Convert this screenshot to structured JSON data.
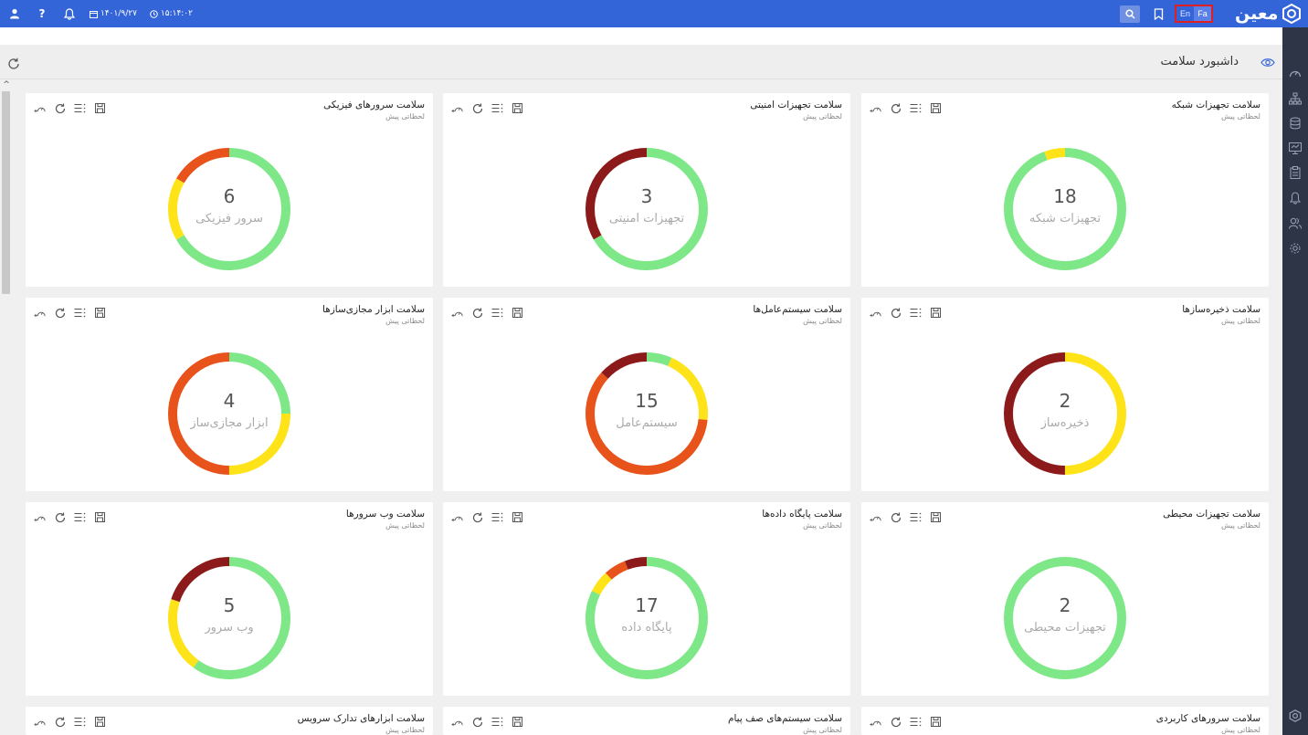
{
  "topbar": {
    "date": "۱۴۰۱/۹/۲۷",
    "time": "۱۵:۱۴:۰۲",
    "lang_en": "En",
    "lang_fa": "Fa",
    "logo_text": "معین",
    "colors": {
      "bar": "#3465d8",
      "lang_highlight": "#e02020"
    }
  },
  "page": {
    "title": "داشبورد سلامت"
  },
  "colors": {
    "green": "#7ee787",
    "yellow": "#fde318",
    "orange": "#e8521b",
    "darkred": "#8c1a1a"
  },
  "cards": [
    {
      "title": "سلامت تجهیزات شبکه",
      "subtitle": "لحظاتی پیش",
      "count": "18",
      "label": "تجهیزات شبکه",
      "segments": [
        {
          "color": "green",
          "value": 17
        },
        {
          "color": "yellow",
          "value": 1
        }
      ]
    },
    {
      "title": "سلامت تجهیزات امنیتی",
      "subtitle": "لحظاتی پیش",
      "count": "3",
      "label": "تجهیزات امنیتی",
      "segments": [
        {
          "color": "green",
          "value": 2
        },
        {
          "color": "darkred",
          "value": 1
        }
      ]
    },
    {
      "title": "سلامت سرورهای فیزیکی",
      "subtitle": "لحظاتی پیش",
      "count": "6",
      "label": "سرور فیزیکی",
      "segments": [
        {
          "color": "green",
          "value": 4
        },
        {
          "color": "yellow",
          "value": 1
        },
        {
          "color": "orange",
          "value": 1
        }
      ]
    },
    {
      "title": "سلامت ذخیره‌سازها",
      "subtitle": "لحظاتی پیش",
      "count": "2",
      "label": "ذخیره‌ساز",
      "segments": [
        {
          "color": "yellow",
          "value": 1
        },
        {
          "color": "darkred",
          "value": 1
        }
      ]
    },
    {
      "title": "سلامت سیستم‌عامل‌ها",
      "subtitle": "لحظاتی پیش",
      "count": "15",
      "label": "سیستم‌عامل",
      "segments": [
        {
          "color": "green",
          "value": 1
        },
        {
          "color": "yellow",
          "value": 3
        },
        {
          "color": "orange",
          "value": 9
        },
        {
          "color": "darkred",
          "value": 2
        }
      ]
    },
    {
      "title": "سلامت ابزار مجازی‌سازها",
      "subtitle": "لحظاتی پیش",
      "count": "4",
      "label": "ابزار مجازی‌ساز",
      "segments": [
        {
          "color": "green",
          "value": 1
        },
        {
          "color": "yellow",
          "value": 1
        },
        {
          "color": "orange",
          "value": 2
        }
      ]
    },
    {
      "title": "سلامت تجهیزات محیطی",
      "subtitle": "لحظاتی پیش",
      "count": "2",
      "label": "تجهیزات محیطی",
      "segments": [
        {
          "color": "green",
          "value": 2
        }
      ]
    },
    {
      "title": "سلامت پایگاه داده‌ها",
      "subtitle": "لحظاتی پیش",
      "count": "17",
      "label": "پایگاه داده",
      "segments": [
        {
          "color": "green",
          "value": 14
        },
        {
          "color": "yellow",
          "value": 1
        },
        {
          "color": "orange",
          "value": 1
        },
        {
          "color": "darkred",
          "value": 1
        }
      ]
    },
    {
      "title": "سلامت وب سرورها",
      "subtitle": "لحظاتی پیش",
      "count": "5",
      "label": "وب سرور",
      "segments": [
        {
          "color": "green",
          "value": 3
        },
        {
          "color": "yellow",
          "value": 1
        },
        {
          "color": "darkred",
          "value": 1
        }
      ]
    },
    {
      "title": "سلامت سرورهای کاربردی",
      "subtitle": "لحظاتی پیش",
      "count": "",
      "label": "",
      "segments": []
    },
    {
      "title": "سلامت سیستم‌های صف پیام",
      "subtitle": "لحظاتی پیش",
      "count": "",
      "label": "",
      "segments": []
    },
    {
      "title": "سلامت ابزارهای تدارک سرویس",
      "subtitle": "لحظاتی پیش",
      "count": "",
      "label": "",
      "segments": []
    }
  ]
}
